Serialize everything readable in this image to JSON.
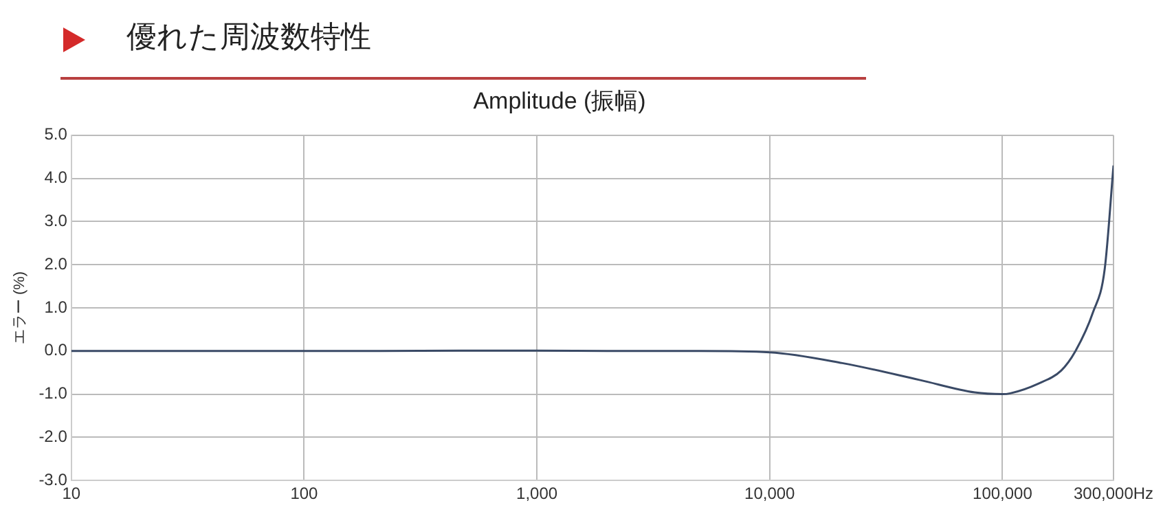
{
  "chart_data": {
    "type": "line",
    "title": "優れた周波数特性",
    "subtitle": "Amplitude (振幅)",
    "ylabel": "エラー (%)",
    "x": [
      10,
      20,
      50,
      100,
      200,
      500,
      1000,
      2000,
      5000,
      10000,
      20500,
      44000,
      76000,
      100000,
      108000,
      142000,
      179000,
      205000,
      245000,
      275000,
      300000
    ],
    "series": [
      {
        "color": "#3a4a66",
        "values": [
          0,
          0,
          0,
          0,
          0,
          0.01,
          0.01,
          0,
          0,
          -0.03,
          -0.28,
          -0.67,
          -0.96,
          -1.0,
          -0.98,
          -0.76,
          -0.45,
          -0.02,
          0.9,
          1.9,
          4.3
        ]
      }
    ],
    "log": "x",
    "xlim": [
      10,
      300000
    ],
    "xticks": [
      10,
      100,
      {
        "value": 1000,
        "label": "1,000"
      },
      {
        "value": 10000,
        "label": "10,000"
      },
      {
        "value": 100000,
        "label": "100,000"
      },
      {
        "value": 300000,
        "label": "300,000Hz"
      }
    ],
    "ylim": [
      -3,
      5
    ],
    "yticks": [
      {
        "value": -3,
        "label": "-3.0"
      },
      {
        "value": -2,
        "label": "-2.0"
      },
      {
        "value": -1,
        "label": "-1.0"
      },
      {
        "value": 0,
        "label": "0.0"
      },
      {
        "value": 1,
        "label": "1.0"
      },
      {
        "value": 2,
        "label": "2.0"
      },
      {
        "value": 3,
        "label": "3.0"
      },
      {
        "value": 4,
        "label": "4.0"
      },
      {
        "value": 5,
        "label": "5.0"
      }
    ],
    "grid": true,
    "legend": false,
    "marker": "none",
    "line_style": "solid"
  }
}
